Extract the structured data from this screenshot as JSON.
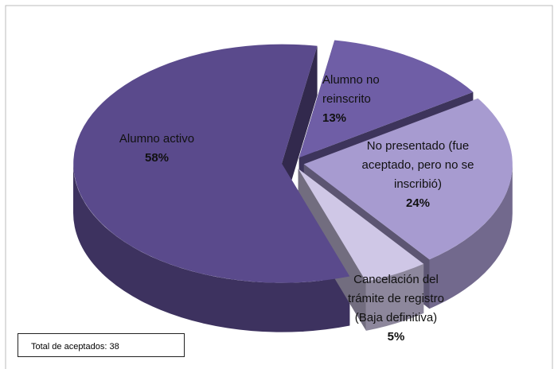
{
  "chart_data": {
    "type": "pie",
    "categories": [
      "Alumno activo",
      "Alumno no reinscrito",
      "No presentado (fue aceptado, pero no se inscribió)",
      "Cancelación del trámite de registro (Baja definitiva)"
    ],
    "values": [
      58,
      13,
      24,
      5
    ],
    "value_labels": [
      "58%",
      "13%",
      "24%",
      "5%"
    ],
    "colors": [
      "#5a4a8c",
      "#6f5ea6",
      "#a79bd0",
      "#cfc7e6"
    ],
    "annotation": "Total de aceptados: 38"
  }
}
